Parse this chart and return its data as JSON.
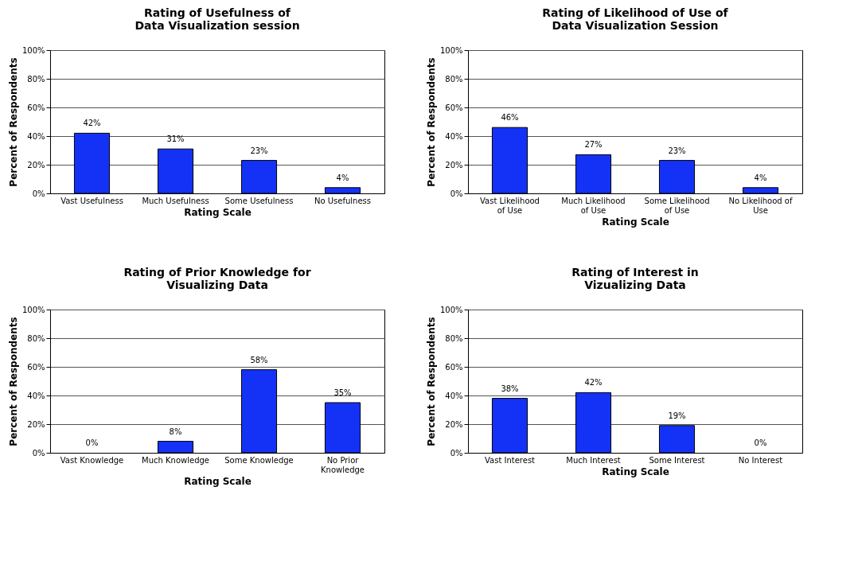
{
  "chart_data": [
    {
      "type": "bar",
      "title": "Rating of Usefulness of\nData Visualization session",
      "xlabel": "Rating Scale",
      "ylabel": "Percent of Respondents",
      "categories": [
        "Vast Usefulness",
        "Much Usefulness",
        "Some Usefulness",
        "No Usefulness"
      ],
      "values": [
        42,
        31,
        23,
        4
      ],
      "value_labels": [
        "42%",
        "31%",
        "23%",
        "4%"
      ],
      "color": "#1432f5",
      "ylim": [
        0,
        100
      ],
      "yticks": [
        {
          "value": 0,
          "label": "0%"
        },
        {
          "value": 20,
          "label": "20%"
        },
        {
          "value": 40,
          "label": "40%"
        },
        {
          "value": 60,
          "label": "60%"
        },
        {
          "value": 80,
          "label": "80%"
        },
        {
          "value": 100,
          "label": "100%"
        }
      ],
      "grid": "y"
    },
    {
      "type": "bar",
      "title": "Rating of Likelihood of Use of\nData Visualization Session",
      "xlabel": "Rating Scale",
      "ylabel": "Percent of Respondents",
      "categories": [
        "Vast Likelihood of Use",
        "Much Likelihood of Use",
        "Some Likelihood of Use",
        "No Likelihood of Use"
      ],
      "values": [
        46,
        27,
        23,
        4
      ],
      "value_labels": [
        "46%",
        "27%",
        "23%",
        "4%"
      ],
      "color": "#1432f5",
      "ylim": [
        0,
        100
      ],
      "yticks": [
        {
          "value": 0,
          "label": "0%"
        },
        {
          "value": 20,
          "label": "20%"
        },
        {
          "value": 40,
          "label": "40%"
        },
        {
          "value": 60,
          "label": "60%"
        },
        {
          "value": 80,
          "label": "80%"
        },
        {
          "value": 100,
          "label": "100%"
        }
      ],
      "grid": "y"
    },
    {
      "type": "bar",
      "title": "Rating of Prior Knowledge for\nVisualizing Data",
      "xlabel": "Rating Scale",
      "ylabel": "Percent of Respondents",
      "categories": [
        "Vast Knowledge",
        "Much Knowledge",
        "Some Knowledge",
        "No Prior Knowledge"
      ],
      "values": [
        0,
        8,
        58,
        35
      ],
      "value_labels": [
        "0%",
        "8%",
        "58%",
        "35%"
      ],
      "color": "#1432f5",
      "ylim": [
        0,
        100
      ],
      "yticks": [
        {
          "value": 0,
          "label": "0%"
        },
        {
          "value": 20,
          "label": "20%"
        },
        {
          "value": 40,
          "label": "40%"
        },
        {
          "value": 60,
          "label": "60%"
        },
        {
          "value": 80,
          "label": "80%"
        },
        {
          "value": 100,
          "label": "100%"
        }
      ],
      "grid": "y"
    },
    {
      "type": "bar",
      "title": "Rating of Interest in\nVizualizing Data",
      "xlabel": "Rating Scale",
      "ylabel": "Percent of Respondents",
      "categories": [
        "Vast Interest",
        "Much Interest",
        "Some Interest",
        "No Interest"
      ],
      "values": [
        38,
        42,
        19,
        0
      ],
      "value_labels": [
        "38%",
        "42%",
        "19%",
        "0%"
      ],
      "color": "#1432f5",
      "ylim": [
        0,
        100
      ],
      "yticks": [
        {
          "value": 0,
          "label": "0%"
        },
        {
          "value": 20,
          "label": "20%"
        },
        {
          "value": 40,
          "label": "40%"
        },
        {
          "value": 60,
          "label": "60%"
        },
        {
          "value": 80,
          "label": "80%"
        },
        {
          "value": 100,
          "label": "100%"
        }
      ],
      "grid": "y"
    }
  ]
}
